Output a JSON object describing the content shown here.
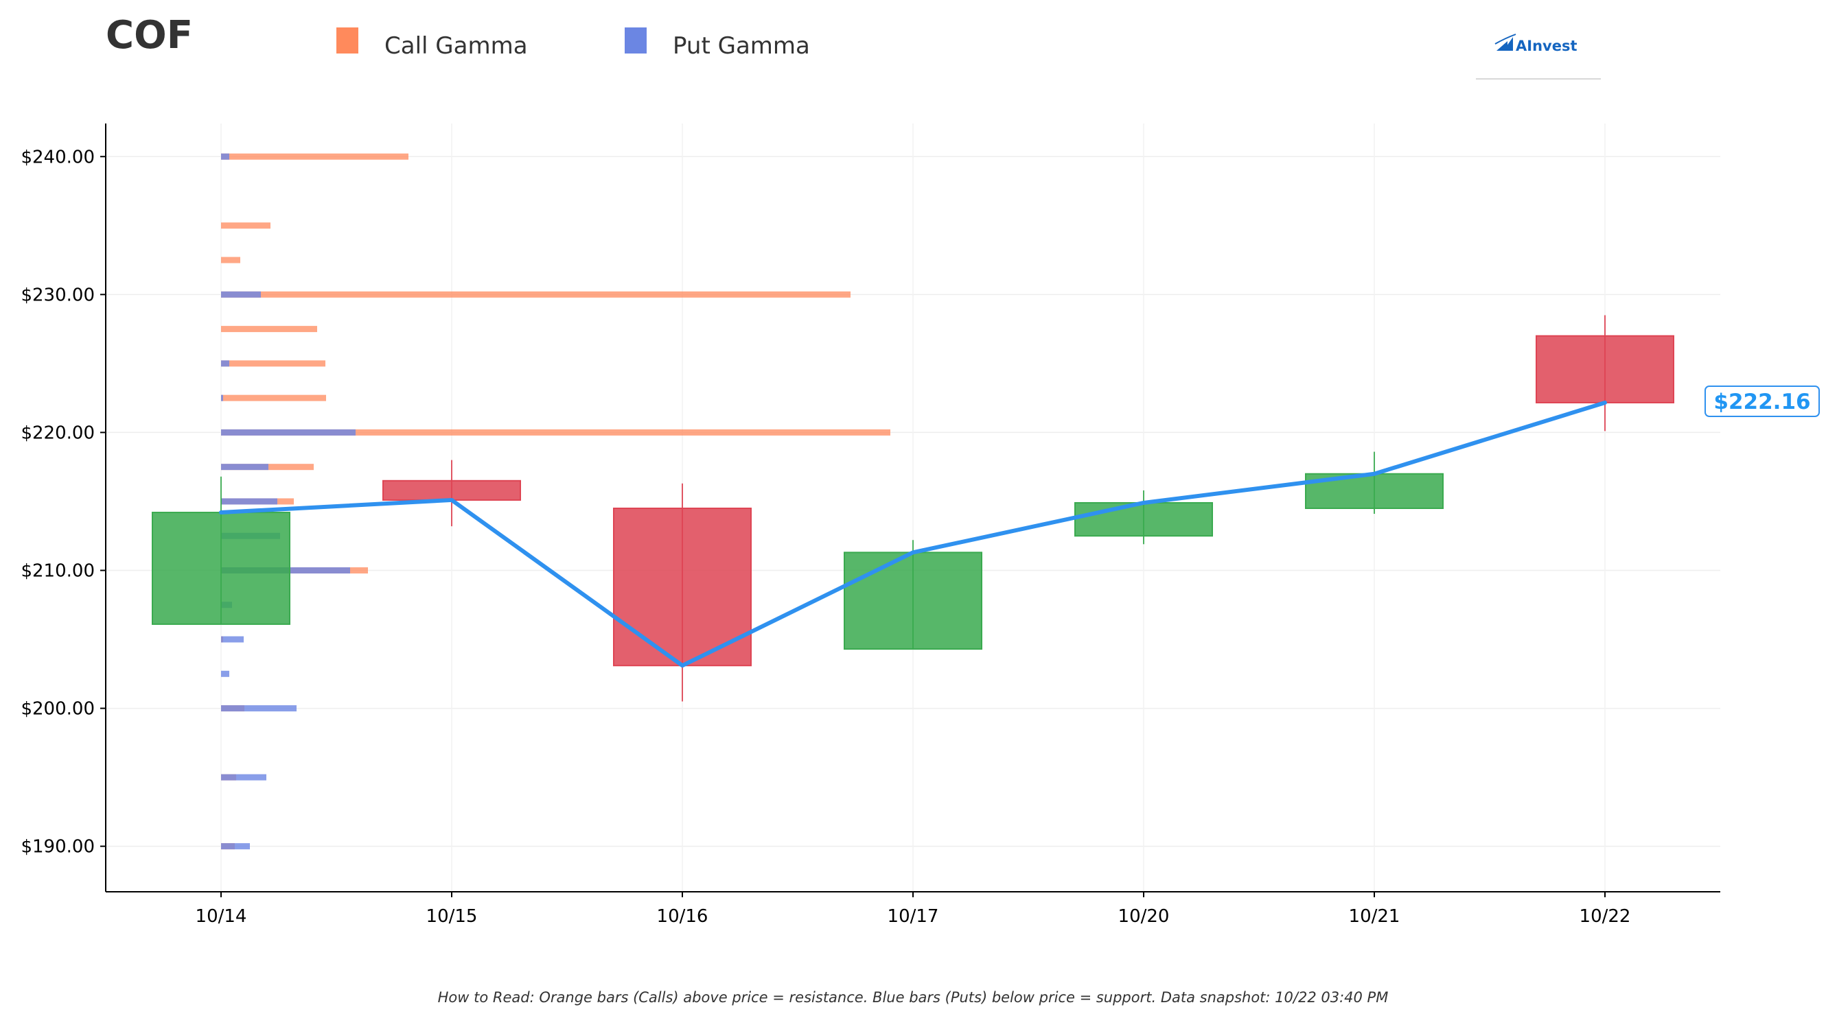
{
  "chart_data": {
    "type": "candlestick",
    "title": "COF",
    "legend": {
      "placement": "top-left",
      "entries": [
        {
          "name": "Call Gamma",
          "color": "#ff8a5c"
        },
        {
          "name": "Put Gamma",
          "color": "#6b86e3"
        }
      ]
    },
    "categories": [
      "10/14",
      "10/15",
      "10/16",
      "10/17",
      "10/20",
      "10/21",
      "10/22"
    ],
    "y_ticks": [
      190,
      200,
      210,
      220,
      230,
      240
    ],
    "y_tick_labels": [
      "$190.00",
      "$200.00",
      "$210.00",
      "$220.00",
      "$230.00",
      "$240.00"
    ],
    "ylim": [
      186.7,
      242.4
    ],
    "grid": true,
    "candles": [
      {
        "date": "10/14",
        "open": 206.1,
        "high": 216.8,
        "low": 206.1,
        "close": 214.2
      },
      {
        "date": "10/15",
        "open": 216.5,
        "high": 218.0,
        "low": 213.2,
        "close": 215.1
      },
      {
        "date": "10/16",
        "open": 214.5,
        "high": 216.3,
        "low": 200.5,
        "close": 203.1
      },
      {
        "date": "10/17",
        "open": 204.3,
        "high": 212.2,
        "low": 204.3,
        "close": 211.3
      },
      {
        "date": "10/20",
        "open": 212.5,
        "high": 215.8,
        "low": 211.9,
        "close": 214.9
      },
      {
        "date": "10/21",
        "open": 214.5,
        "high": 218.6,
        "low": 214.1,
        "close": 217.0
      },
      {
        "date": "10/22",
        "open": 227.0,
        "high": 228.5,
        "low": 220.1,
        "close": 222.16
      }
    ],
    "up_color": "#3aaa4f",
    "down_color": "#de4453",
    "price_line": {
      "color": "#2f91ef",
      "values": [
        214.2,
        215.1,
        203.1,
        211.3,
        214.9,
        217.0,
        222.16
      ]
    },
    "last_price_label": "$222.16",
    "gamma_bars": [
      {
        "strike": 190.0,
        "call": 2.0,
        "put": 4.2
      },
      {
        "strike": 195.0,
        "call": 2.2,
        "put": 6.6
      },
      {
        "strike": 200.0,
        "call": 3.4,
        "put": 11.0
      },
      {
        "strike": 202.5,
        "call": 0.0,
        "put": 1.2
      },
      {
        "strike": 205.0,
        "call": 0.3,
        "put": 3.3
      },
      {
        "strike": 207.5,
        "call": 0.0,
        "put": 1.6
      },
      {
        "strike": 210.0,
        "call": 21.4,
        "put": 18.8
      },
      {
        "strike": 212.5,
        "call": 0.0,
        "put": 8.6
      },
      {
        "strike": 215.0,
        "call": 10.6,
        "put": 8.2
      },
      {
        "strike": 217.5,
        "call": 13.5,
        "put": 6.9
      },
      {
        "strike": 220.0,
        "call": 97.5,
        "put": 19.6
      },
      {
        "strike": 222.5,
        "call": 15.3,
        "put": 0.3
      },
      {
        "strike": 225.0,
        "call": 15.2,
        "put": 1.2
      },
      {
        "strike": 227.5,
        "call": 14.0,
        "put": 0.0
      },
      {
        "strike": 230.0,
        "call": 91.7,
        "put": 5.8
      },
      {
        "strike": 232.5,
        "call": 2.8,
        "put": 0.0
      },
      {
        "strike": 235.0,
        "call": 7.2,
        "put": 0.0
      },
      {
        "strike": 240.0,
        "call": 27.3,
        "put": 1.2
      }
    ],
    "annotation": "How to Read: Orange bars (Calls) above price = resistance. Blue bars (Puts) below price = support. Data snapshot: 10/22 03:40 PM"
  },
  "logo": {
    "text": "AInvest"
  }
}
